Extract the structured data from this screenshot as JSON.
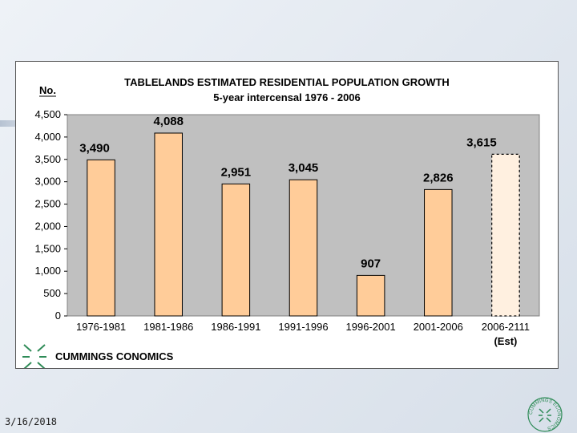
{
  "footer": {
    "date": "3/16/2018"
  },
  "brand": {
    "name": "CUMMINGS CONOMICS",
    "seal_text": "CUMMINGS ECONOMICS"
  },
  "colors": {
    "bar": "#ffcc99",
    "bar_est": "#fff0e0",
    "plot_bg": "#c0c0c0",
    "brand": "#2e8b57"
  },
  "chart_data": {
    "type": "bar",
    "title": "TABLELANDS ESTIMATED RESIDENTIAL POPULATION GROWTH",
    "subtitle": "5-year intercensal 1976 - 2006",
    "ylabel": "No.",
    "xlabel": "",
    "ylim": [
      0,
      4500
    ],
    "yticks": [
      0,
      500,
      1000,
      1500,
      2000,
      2500,
      3000,
      3500,
      4000,
      4500
    ],
    "ytick_labels": [
      "0",
      "500",
      "1,000",
      "1,500",
      "2,000",
      "2,500",
      "3,000",
      "3,500",
      "4,000",
      "4,500"
    ],
    "categories": [
      "1976-1981",
      "1981-1986",
      "1986-1991",
      "1991-1996",
      "1996-2001",
      "2001-2006",
      "2006-2111"
    ],
    "category_sublabels": [
      "",
      "",
      "",
      "",
      "",
      "",
      "(Est)"
    ],
    "values": [
      3490,
      4088,
      2951,
      3045,
      907,
      2826,
      3615
    ],
    "value_labels": [
      "3,490",
      "4,088",
      "2,951",
      "3,045",
      "907",
      "2,826",
      "3,615"
    ],
    "estimated": [
      false,
      false,
      false,
      false,
      false,
      false,
      true
    ],
    "grid": false,
    "legend": "none"
  }
}
